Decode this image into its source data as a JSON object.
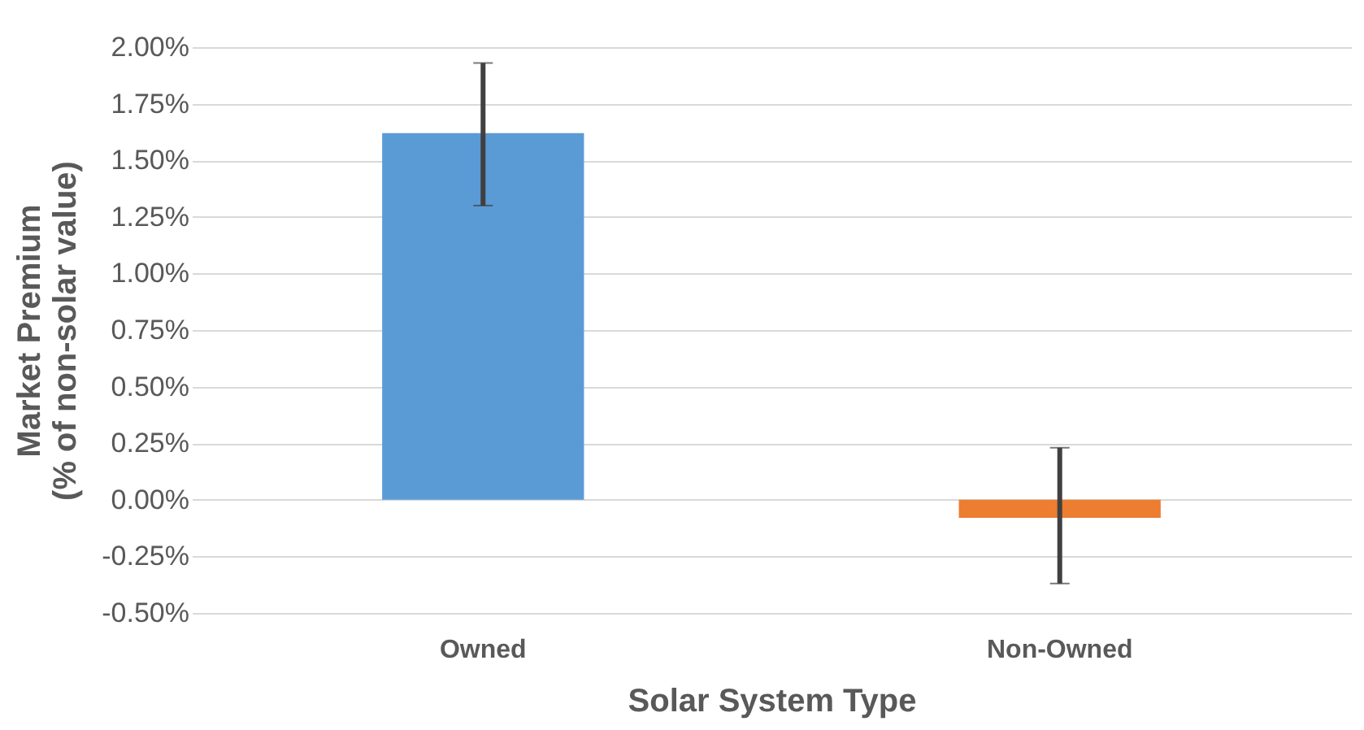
{
  "chart_data": {
    "type": "bar",
    "xlabel": "Solar System Type",
    "ylabel": "Market Premium (% of non-solar value)",
    "categories": [
      "Owned",
      "Non-Owned"
    ],
    "values": [
      1.62,
      -0.08
    ],
    "colors": [
      "#5b9bd5",
      "#ed7d31"
    ],
    "errors": [
      [
        1.3,
        1.93
      ],
      [
        -0.37,
        0.23
      ]
    ],
    "ylim": [
      -0.5,
      2
    ],
    "yticks": [
      {
        "value": -0.5,
        "label": "-0.50%"
      },
      {
        "value": -0.25,
        "label": "-0.25%"
      },
      {
        "value": 0,
        "label": "0.00%"
      },
      {
        "value": 0.25,
        "label": "0.25%"
      },
      {
        "value": 0.5,
        "label": "0.50%"
      },
      {
        "value": 0.75,
        "label": "0.75%"
      },
      {
        "value": 1,
        "label": "1.00%"
      },
      {
        "value": 1.25,
        "label": "1.25%"
      },
      {
        "value": 1.5,
        "label": "1.50%"
      },
      {
        "value": 1.75,
        "label": "1.75%"
      },
      {
        "value": 2,
        "label": "2.00%"
      }
    ],
    "grid": "y"
  }
}
